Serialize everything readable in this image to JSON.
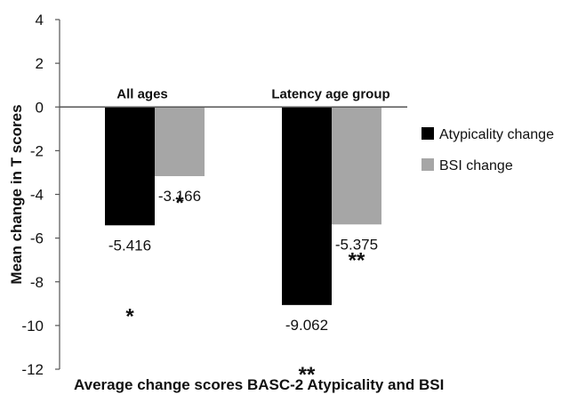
{
  "chart_data": {
    "type": "bar",
    "title": "",
    "xlabel": "Average change scores BASC-2 Atypicality and BSI",
    "ylabel": "Mean change in T scores",
    "ylim": [
      -12,
      4
    ],
    "yticks": [
      4,
      2,
      0,
      -2,
      -4,
      -6,
      -8,
      -10,
      -12
    ],
    "ytick_labels": [
      "4",
      "2",
      "0",
      "-2",
      "-4",
      "-6",
      "-8",
      "-10",
      "-12"
    ],
    "categories": [
      "All ages",
      "Latency age group"
    ],
    "series": [
      {
        "name": "Atypicality change",
        "color": "#000000",
        "values": [
          -5.416,
          -9.062
        ],
        "labels": [
          "-5.416",
          "-9.062"
        ],
        "significance": [
          "*",
          "**"
        ]
      },
      {
        "name": "BSI change",
        "color": "#a6a6a6",
        "values": [
          -3.166,
          -5.375
        ],
        "labels": [
          "-3.166",
          "-5.375"
        ],
        "significance": [
          "*",
          "**"
        ]
      }
    ],
    "grid": false,
    "legend_position": "right"
  }
}
